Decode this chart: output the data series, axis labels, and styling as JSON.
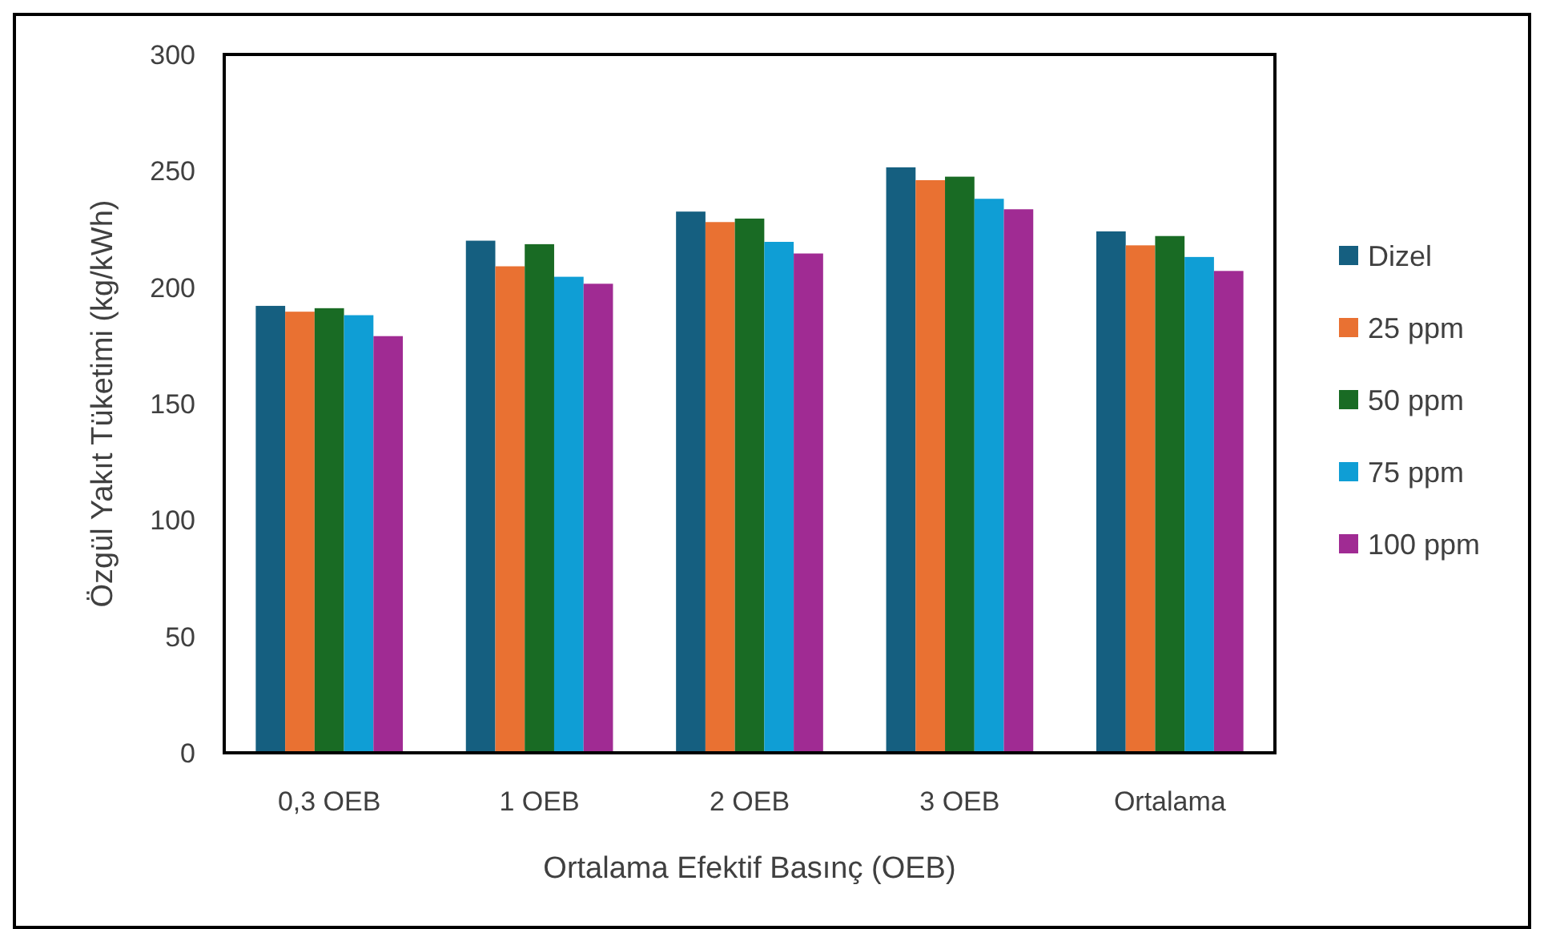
{
  "chart_data": {
    "type": "bar",
    "xlabel": "Ortalama Efektif Basınç (OEB)",
    "ylabel": "Özgül Yakıt Tüketimi (kg/kWh)",
    "categories": [
      "0,3 OEB",
      "1 OEB",
      "2 OEB",
      "3 OEB",
      "Ortalama"
    ],
    "series": [
      {
        "name": "Dizel",
        "color": "#155f80",
        "values": [
          192,
          220,
          232.5,
          251.5,
          224
        ]
      },
      {
        "name": "25 ppm",
        "color": "#e97132",
        "values": [
          189.5,
          209,
          228,
          246,
          218
        ]
      },
      {
        "name": "50 ppm",
        "color": "#196b24",
        "values": [
          191,
          218.5,
          229.5,
          247.5,
          222
        ]
      },
      {
        "name": "75 ppm",
        "color": "#0f9ed5",
        "values": [
          188,
          204.5,
          219.5,
          238,
          213
        ]
      },
      {
        "name": "100 ppm",
        "color": "#a02b93",
        "values": [
          179,
          201.5,
          214.5,
          233.5,
          207
        ]
      }
    ],
    "ylim": [
      0,
      300
    ],
    "yticks": [
      0,
      50,
      100,
      150,
      200,
      250,
      300
    ],
    "grid": false,
    "legend": "right"
  }
}
